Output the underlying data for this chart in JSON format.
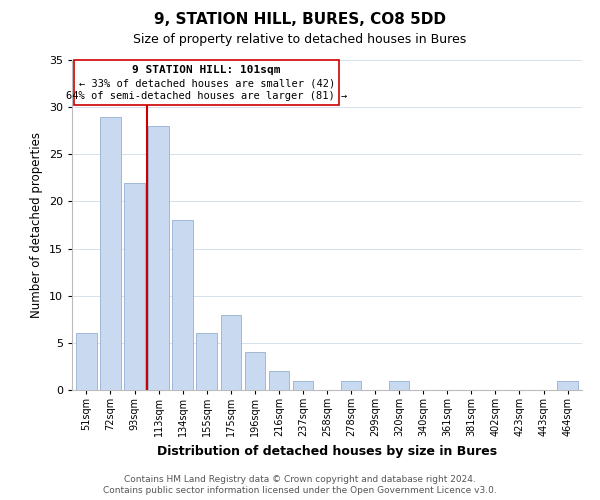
{
  "title": "9, STATION HILL, BURES, CO8 5DD",
  "subtitle": "Size of property relative to detached houses in Bures",
  "xlabel": "Distribution of detached houses by size in Bures",
  "ylabel": "Number of detached properties",
  "bar_labels": [
    "51sqm",
    "72sqm",
    "93sqm",
    "113sqm",
    "134sqm",
    "155sqm",
    "175sqm",
    "196sqm",
    "216sqm",
    "237sqm",
    "258sqm",
    "278sqm",
    "299sqm",
    "320sqm",
    "340sqm",
    "361sqm",
    "381sqm",
    "402sqm",
    "423sqm",
    "443sqm",
    "464sqm"
  ],
  "bar_values": [
    6,
    29,
    22,
    28,
    18,
    6,
    8,
    4,
    2,
    1,
    0,
    1,
    0,
    1,
    0,
    0,
    0,
    0,
    0,
    0,
    1
  ],
  "bar_color": "#c8d9f0",
  "bar_edge_color": "#a0b8d8",
  "highlight_line_color": "#cc0000",
  "ylim": [
    0,
    35
  ],
  "yticks": [
    0,
    5,
    10,
    15,
    20,
    25,
    30,
    35
  ],
  "annotation_title": "9 STATION HILL: 101sqm",
  "annotation_line1": "← 33% of detached houses are smaller (42)",
  "annotation_line2": "64% of semi-detached houses are larger (81) →",
  "annotation_box_color": "#ffffff",
  "annotation_border_color": "#cc0000",
  "footer1": "Contains HM Land Registry data © Crown copyright and database right 2024.",
  "footer2": "Contains public sector information licensed under the Open Government Licence v3.0."
}
